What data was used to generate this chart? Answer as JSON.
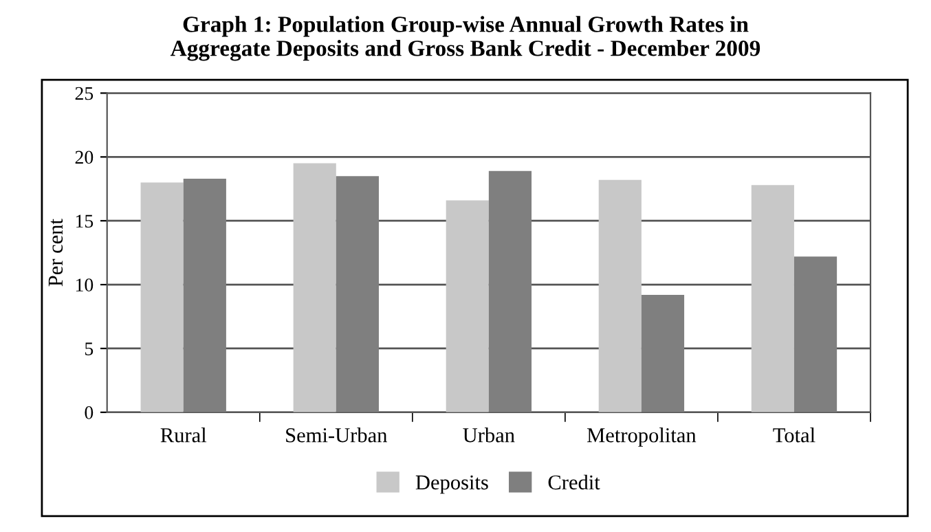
{
  "chart_data": {
    "type": "bar",
    "title": "Graph 1: Population Group-wise Annual Growth Rates in\nAggregate Deposits and Gross Bank Credit - December 2009",
    "ylabel": "Per cent",
    "categories": [
      "Rural",
      "Semi-Urban",
      "Urban",
      "Metropolitan",
      "Total"
    ],
    "series": [
      {
        "name": "Deposits",
        "color": "#c8c8c8",
        "values": [
          18.0,
          19.5,
          16.6,
          18.2,
          17.8
        ]
      },
      {
        "name": "Credit",
        "color": "#7f7f7f",
        "values": [
          18.3,
          18.5,
          18.9,
          9.2,
          12.2
        ]
      }
    ],
    "ylim": [
      0,
      25
    ],
    "yticks": [
      0,
      5,
      10,
      15,
      20,
      25
    ],
    "grid": "y",
    "legend": "bottom"
  }
}
